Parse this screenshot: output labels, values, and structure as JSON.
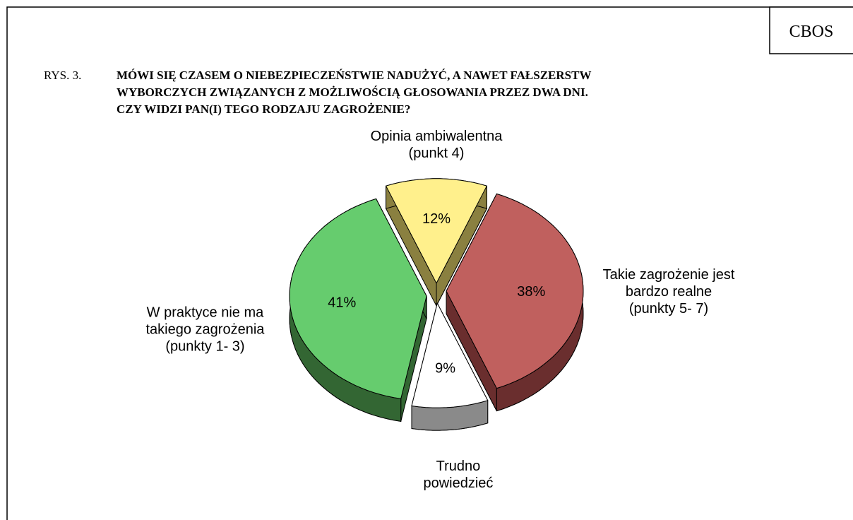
{
  "header": {
    "badge": "CBOS"
  },
  "chart_data": {
    "type": "pie",
    "figure_label": "RYS. 3.",
    "title_lines": [
      "MÓWI SIĘ CZASEM O NIEBEZPIECZEŃSTWIE NADUŻYĆ, A NAWET FAŁSZERSTW",
      "WYBORCZYCH ZWIĄZANYCH Z MOŻLIWOŚCIĄ GŁOSOWANIA PRZEZ DWA DNI.",
      "CZY WIDZI PAN(I) TEGO RODZAJU ZAGROŻENIE?"
    ],
    "categories": [
      [
        "Opinia ambiwalentna",
        "(punkt 4)"
      ],
      [
        "Takie zagrożenie jest",
        "bardzo realne",
        "(punkty 5- 7)"
      ],
      [
        "Trudno",
        "powiedzieć"
      ],
      [
        "W praktyce nie ma",
        "takiego zagrożenia",
        "(punkty 1- 3)"
      ]
    ],
    "values": [
      12,
      38,
      9,
      41
    ],
    "value_labels": [
      "12%",
      "38%",
      "9%",
      "41%"
    ],
    "colors": [
      "#fff08c",
      "#c0605e",
      "#ffffff",
      "#66cc6e"
    ],
    "side_colors": [
      "#8a8040",
      "#6a2e2e",
      "#8a8a8a",
      "#336633"
    ]
  }
}
